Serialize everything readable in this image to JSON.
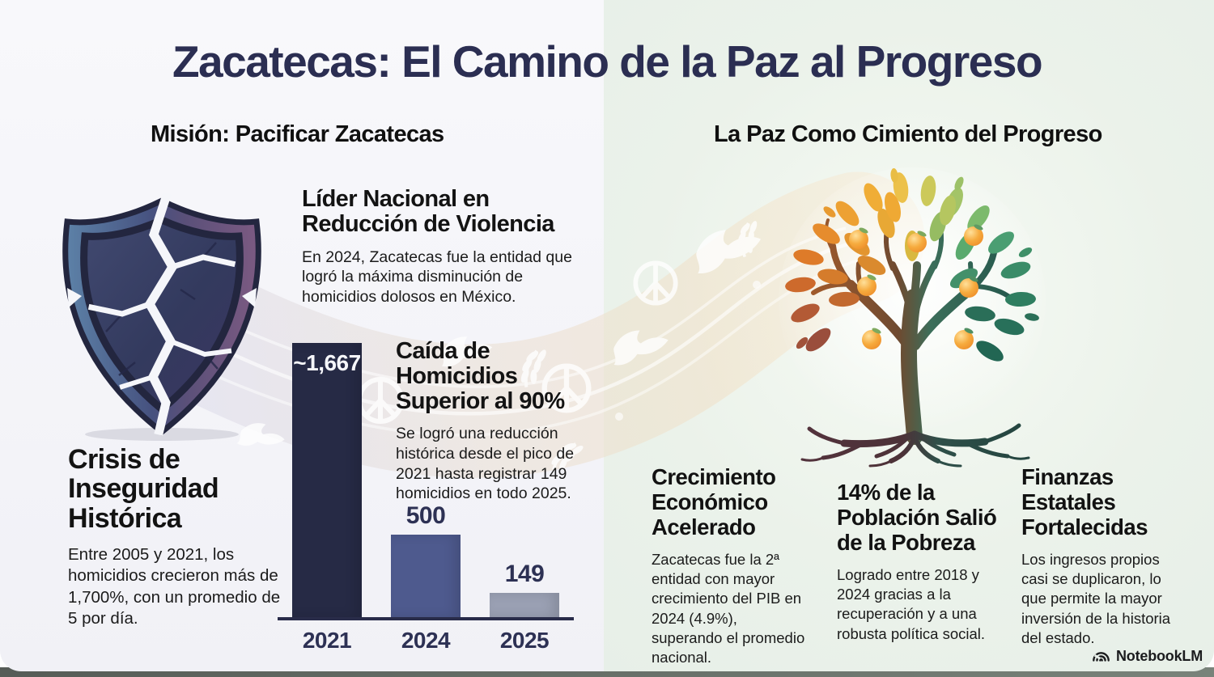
{
  "title": "Zacatecas: El Camino de la Paz al Progreso",
  "left_panel": {
    "header": "Misión: Pacificar Zacatecas",
    "leader_block": {
      "heading": "Líder Nacional en Reducción de Violencia",
      "body": "En 2024, Zacatecas fue la entidad que logró la máxima disminución de homicidios dolosos en México."
    },
    "drop_block": {
      "heading": "Caída de Homicidios Superior al 90%",
      "body": "Se logró una reducción histórica desde el pico de 2021 hasta registrar 149 homicidios en todo 2025."
    },
    "crisis_block": {
      "heading": "Crisis de Inseguridad Histórica",
      "body": "Entre 2005 y 2021, los homicidios crecieron más de 1,700%, con un promedio de 5 por día."
    }
  },
  "right_panel": {
    "header": "La Paz Como Cimiento del Progreso",
    "columns": [
      {
        "heading": "Crecimiento Económico Acelerado",
        "body": "Zacatecas fue la 2ª entidad con mayor crecimiento del PIB en 2024 (4.9%), superando el promedio nacional."
      },
      {
        "heading": "14% de la Población Salió de la Pobreza",
        "body": "Logrado entre 2018 y 2024 gracias a la recuperación y a una robusta política social."
      },
      {
        "heading": "Finanzas Estatales Fortalecidas",
        "body": "Los ingresos propios casi se duplicaron, lo que permite la mayor inversión de la historia del estado."
      }
    ]
  },
  "chart_data": {
    "type": "bar",
    "categories": [
      "2021",
      "2024",
      "2025"
    ],
    "values": [
      1667,
      500,
      149
    ],
    "value_labels": [
      "~1,667",
      "500",
      "149"
    ],
    "bar_colors": [
      "#262a45",
      "#4e5a8e",
      "#9aa0b3"
    ],
    "title": "",
    "xlabel": "",
    "ylabel": "",
    "ylim": [
      0,
      1700
    ],
    "grid": false,
    "legend": "none"
  },
  "icons": {
    "shield": "broken-shield-icon",
    "tree": "peace-tree-icon",
    "dove": "dove-icon",
    "peace": "peace-symbol-icon",
    "olive": "olive-branch-icon"
  },
  "footer": {
    "brand": "NotebookLM"
  },
  "colors": {
    "title": "#2b2e52",
    "panel_left_bg": "#f3f3f8",
    "panel_right_bg": "#e9f0ea",
    "axis": "#292c49",
    "heading_text": "#131313",
    "body_text": "#1b1b1b",
    "bar_2021": "#262a45",
    "bar_2024": "#4e5a8e",
    "bar_2025": "#9aa0b3"
  }
}
